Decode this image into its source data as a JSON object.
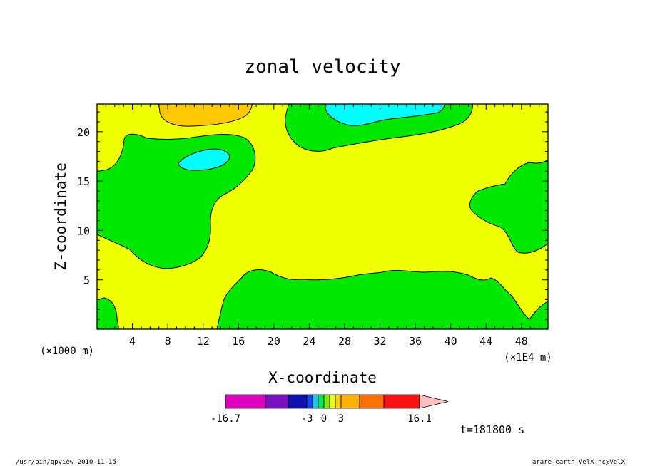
{
  "chart_data": {
    "type": "contour",
    "title": "zonal velocity",
    "xlabel": "X-coordinate",
    "ylabel": "Z-coordinate",
    "x_unit_label": "(×1E4 m)",
    "y_unit_label": "(×1000 m)",
    "xlim": [
      0,
      51
    ],
    "ylim": [
      0,
      22.8
    ],
    "x_ticks": [
      "4",
      "8",
      "12",
      "16",
      "20",
      "24",
      "28",
      "32",
      "36",
      "40",
      "44",
      "48"
    ],
    "y_ticks": [
      "5",
      "10",
      "15",
      "20"
    ],
    "grid": false,
    "colorbar": {
      "tick_labels": [
        "-16.7",
        "-3",
        "0",
        "3",
        "16.1"
      ],
      "min": -16.7,
      "max": 16.1,
      "colors": [
        "#e000c0",
        "#7a10c0",
        "#1010b0",
        "#1848f0",
        "#10c8f8",
        "#00e860",
        "#80f000",
        "#f0ff00",
        "#ffd000",
        "#ffb000",
        "#ff7000",
        "#ff1010",
        "#ff8080",
        "#ffc0c0"
      ]
    },
    "regions": [
      {
        "name": "background",
        "color": "#f0ff00",
        "value_range": "0 to 3"
      },
      {
        "name": "upper-left-warm",
        "color": "#ffc800",
        "value_range": "3 to 6"
      },
      {
        "name": "green-left",
        "color": "#00e800",
        "value_range": "-1 to 0"
      },
      {
        "name": "cyan-left",
        "color": "#00ffff",
        "value_range": "-2 to -1"
      },
      {
        "name": "green-top-center",
        "color": "#00e800",
        "value_range": "-1 to 0"
      },
      {
        "name": "cyan-top-center",
        "color": "#00ffff",
        "value_range": "-2 to -1"
      },
      {
        "name": "green-right",
        "color": "#00e800",
        "value_range": "-1 to 0"
      },
      {
        "name": "green-bottom",
        "color": "#00e800",
        "value_range": "-1 to 0"
      },
      {
        "name": "green-bottom-left",
        "color": "#00e800",
        "value_range": "-1 to 0"
      }
    ]
  },
  "annotations": {
    "time": "t=181800 s",
    "footer_left": "/usr/bin/gpview   2010-11-15",
    "footer_right": "arare-earth_VelX.nc@VelX"
  }
}
